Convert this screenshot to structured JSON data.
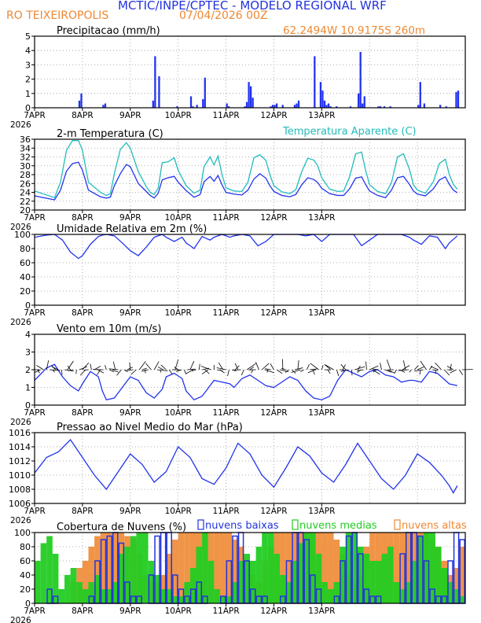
{
  "header": {
    "title": "MCTIC/INPE/CPTEC - MODELO REGIONAL WRF",
    "station": "RO TEIXEIROPOLIS",
    "run": "07/04/2026 00Z",
    "coords": "62.2494W 10.9175S 260m"
  },
  "colors": {
    "title": "#2233dd",
    "station": "#ee8833",
    "bar": "#2233ee",
    "line": "#2233ee",
    "apparent": "#22bbbb",
    "cloud_low": "#2233dd",
    "cloud_mid": "#22cc22",
    "cloud_high": "#ee8833"
  },
  "x_axis": {
    "labels": [
      "7APR",
      "8APR",
      "9APR",
      "10APR",
      "11APR",
      "12APR",
      "13APR"
    ],
    "year": "2026"
  },
  "chart_data": [
    {
      "type": "bar",
      "title": "Precipitacao (mm/h)",
      "ylim": [
        0,
        5
      ],
      "yticks": [
        0,
        1,
        2,
        3,
        4,
        5
      ],
      "x_hours": [
        22,
        23,
        34,
        35,
        59,
        60,
        62,
        71,
        78,
        79,
        81,
        84,
        85,
        96,
        97,
        105,
        106,
        107,
        108,
        109,
        118,
        119,
        120,
        121,
        124,
        130,
        131,
        132,
        140,
        143,
        144,
        145,
        146,
        147,
        148,
        151,
        158,
        162,
        163,
        164,
        165,
        172,
        173,
        175,
        178,
        192,
        193,
        195,
        203,
        206,
        211,
        212
      ],
      "values": [
        0.5,
        1.0,
        0.2,
        0.3,
        0.5,
        3.6,
        2.2,
        0.1,
        0.8,
        0.1,
        0.2,
        0.6,
        2.1,
        0.3,
        0.1,
        0.1,
        0.4,
        1.8,
        1.5,
        0.7,
        0.1,
        0.2,
        0.2,
        0.3,
        0.2,
        0.2,
        0.3,
        0.5,
        3.6,
        1.8,
        1.2,
        0.5,
        0.2,
        0.3,
        0.1,
        0.1,
        0.1,
        1.0,
        3.9,
        0.3,
        0.8,
        0.1,
        0.1,
        0.1,
        0.1,
        0.2,
        1.8,
        0.3,
        0.2,
        0.1,
        1.1,
        1.2
      ]
    },
    {
      "type": "line",
      "title": "2-m Temperatura (C)",
      "ylim": [
        20,
        36
      ],
      "yticks": [
        20,
        22,
        24,
        26,
        28,
        30,
        32,
        34,
        36
      ],
      "series_label": "Temperatura Aparente (C)",
      "series": [
        {
          "name": "temperature",
          "x": [
            0,
            10,
            13,
            16,
            19,
            22,
            24,
            27,
            33,
            36,
            38,
            40,
            43,
            46,
            48,
            52,
            56,
            58,
            60,
            62,
            64,
            67,
            70,
            72,
            76,
            80,
            83,
            85,
            88,
            90,
            92,
            94,
            96,
            100,
            104,
            107,
            110,
            113,
            116,
            118,
            120,
            124,
            128,
            131,
            134,
            137,
            140,
            142,
            144,
            148,
            152,
            155,
            158,
            161,
            164,
            166,
            168,
            172,
            176,
            179,
            182,
            185,
            188,
            190,
            192,
            196,
            200,
            203,
            206,
            208,
            210,
            212
          ],
          "values": [
            23.2,
            22.3,
            24.5,
            28.8,
            30.5,
            30.8,
            29,
            24.5,
            23,
            22.7,
            22.9,
            25.5,
            28.2,
            30.3,
            29.8,
            26,
            24.2,
            23.3,
            22.7,
            23.8,
            26.8,
            27.3,
            27.6,
            26.3,
            24.4,
            22.9,
            23.5,
            26.4,
            27.6,
            26.5,
            27.8,
            25.7,
            24,
            23.6,
            23.4,
            24.5,
            27,
            28.2,
            27.2,
            25.5,
            24.2,
            23.3,
            23,
            23.5,
            25.7,
            27.3,
            26.9,
            26.2,
            24.9,
            23.7,
            23.3,
            23.3,
            24.8,
            27.2,
            27.5,
            25.8,
            24.3,
            23.3,
            22.8,
            24.5,
            27.3,
            27.6,
            25.8,
            24.3,
            23.6,
            23.2,
            24.8,
            26.8,
            27.5,
            25.8,
            24.5,
            23.9
          ]
        },
        {
          "name": "apparent",
          "x": [
            0,
            10,
            13,
            16,
            19,
            22,
            24,
            27,
            33,
            36,
            38,
            40,
            43,
            46,
            48,
            52,
            56,
            58,
            60,
            62,
            64,
            67,
            70,
            72,
            76,
            80,
            83,
            85,
            88,
            90,
            92,
            94,
            96,
            100,
            104,
            107,
            110,
            113,
            116,
            118,
            120,
            124,
            128,
            131,
            134,
            137,
            140,
            142,
            144,
            148,
            152,
            155,
            158,
            161,
            164,
            166,
            168,
            172,
            176,
            179,
            182,
            185,
            188,
            190,
            192,
            196,
            200,
            203,
            206,
            208,
            210,
            212
          ],
          "values": [
            24.3,
            22.8,
            26.3,
            33.5,
            35.7,
            35.7,
            33.5,
            26.3,
            24,
            23.3,
            23.7,
            28.2,
            33.7,
            35.2,
            34,
            28.7,
            25.3,
            24,
            23.5,
            25,
            30.7,
            30.9,
            31.8,
            29,
            25.5,
            23.8,
            24.5,
            29.8,
            32,
            30.2,
            32.2,
            28,
            25,
            24.3,
            24.2,
            26.3,
            31.8,
            32.5,
            31.2,
            28,
            25.5,
            24.1,
            23.7,
            24.6,
            28.7,
            31.7,
            31.3,
            30,
            27.3,
            24.7,
            24.2,
            24.3,
            27.5,
            32.7,
            33.1,
            29,
            25.7,
            24.2,
            23.7,
            26.2,
            32,
            32.7,
            29.2,
            25.7,
            24.5,
            23.8,
            26.4,
            30.5,
            31.5,
            28,
            25.8,
            24.7
          ]
        }
      ]
    },
    {
      "type": "line",
      "title": "Umidade Relativa em 2m (%)",
      "ylim": [
        0,
        100
      ],
      "yticks": [
        0,
        20,
        40,
        60,
        80,
        100
      ],
      "x": [
        0,
        6,
        10,
        14,
        18,
        22,
        24,
        28,
        32,
        34,
        36,
        40,
        44,
        48,
        52,
        56,
        60,
        64,
        66,
        70,
        74,
        76,
        80,
        84,
        88,
        90,
        94,
        98,
        100,
        104,
        108,
        112,
        116,
        120,
        124,
        128,
        132,
        136,
        140,
        144,
        148,
        152,
        156,
        160,
        164,
        168,
        172,
        176,
        180,
        184,
        188,
        190,
        194,
        198,
        202,
        206,
        208,
        212
      ],
      "values": [
        96,
        99,
        100,
        92,
        75,
        66,
        70,
        86,
        97,
        99,
        100,
        98,
        88,
        77,
        70,
        82,
        96,
        100,
        96,
        90,
        96,
        88,
        80,
        97,
        92,
        96,
        100,
        96,
        98,
        100,
        98,
        84,
        90,
        100,
        100,
        100,
        100,
        98,
        100,
        90,
        100,
        100,
        100,
        100,
        84,
        92,
        100,
        100,
        100,
        100,
        96,
        92,
        86,
        98,
        96,
        80,
        88,
        98
      ]
    },
    {
      "type": "line",
      "title": "Vento em 10m (m/s)",
      "ylim": [
        0,
        4
      ],
      "yticks": [
        0,
        1,
        2,
        3,
        4
      ],
      "x": [
        0,
        6,
        10,
        14,
        18,
        22,
        24,
        28,
        32,
        34,
        36,
        40,
        44,
        48,
        52,
        56,
        60,
        64,
        66,
        70,
        74,
        76,
        80,
        84,
        88,
        90,
        94,
        98,
        100,
        104,
        108,
        112,
        116,
        120,
        124,
        128,
        132,
        136,
        140,
        144,
        148,
        152,
        156,
        160,
        164,
        168,
        172,
        176,
        180,
        184,
        188,
        190,
        194,
        198,
        202,
        206,
        208,
        212
      ],
      "values": [
        1.4,
        2.1,
        2.3,
        1.6,
        1.1,
        0.8,
        1.2,
        1.9,
        1.6,
        0.8,
        0.3,
        0.4,
        1.0,
        1.6,
        1.4,
        0.7,
        0.4,
        0.9,
        1.6,
        1.8,
        1.5,
        0.8,
        0.3,
        0.5,
        1.1,
        1.4,
        1.3,
        1.2,
        1.0,
        1.5,
        1.7,
        1.4,
        1.1,
        1.0,
        1.3,
        1.6,
        1.4,
        0.8,
        0.4,
        0.3,
        0.5,
        1.4,
        2.0,
        1.8,
        1.6,
        1.9,
        2.0,
        1.7,
        1.6,
        1.3,
        1.4,
        1.4,
        1.3,
        1.9,
        1.8,
        1.4,
        1.2,
        1.1
      ]
    },
    {
      "type": "line",
      "title": "Pressao ao Nivel Medio do Mar (hPa)",
      "ylim": [
        1006,
        1016
      ],
      "yticks": [
        1006,
        1008,
        1010,
        1012,
        1014,
        1016
      ],
      "x": [
        0,
        6,
        12,
        18,
        24,
        30,
        36,
        42,
        48,
        54,
        60,
        66,
        72,
        78,
        84,
        90,
        96,
        102,
        108,
        114,
        120,
        126,
        132,
        138,
        144,
        150,
        156,
        162,
        168,
        174,
        180,
        186,
        192,
        198,
        204,
        208,
        210,
        212
      ],
      "values": [
        1010.3,
        1012.5,
        1013.3,
        1015,
        1012.5,
        1010,
        1008,
        1010.5,
        1013,
        1011.5,
        1009,
        1010.5,
        1014,
        1012.5,
        1009.5,
        1008.7,
        1011,
        1014.5,
        1013,
        1010,
        1008.3,
        1011,
        1014,
        1012.7,
        1010.3,
        1009,
        1011.5,
        1014.5,
        1012,
        1009.5,
        1008,
        1010,
        1013,
        1011.8,
        1010,
        1008.5,
        1007.5,
        1008.5
      ]
    },
    {
      "type": "bar",
      "title": "Cobertura de Nuvens (%)",
      "ylim": [
        0,
        100
      ],
      "yticks": [
        0,
        20,
        40,
        60,
        80,
        100
      ],
      "legend": [
        "nuvens baixas",
        "nuvens medias",
        "nuvens altas"
      ],
      "step_hours": 3,
      "series": [
        {
          "name": "nuvens altas",
          "values": [
            0,
            0,
            0,
            0,
            0,
            0,
            30,
            50,
            60,
            80,
            95,
            100,
            100,
            100,
            100,
            95,
            90,
            70,
            40,
            30,
            30,
            40,
            70,
            90,
            100,
            100,
            100,
            100,
            100,
            100,
            100,
            100,
            100,
            90,
            80,
            60,
            40,
            30,
            60,
            80,
            100,
            100,
            100,
            100,
            100,
            100,
            100,
            100,
            100,
            100,
            90,
            70,
            40,
            30,
            40,
            80,
            100,
            100,
            100,
            100,
            100,
            100,
            100,
            100,
            100,
            100,
            90,
            80,
            60,
            40,
            50,
            80
          ]
        },
        {
          "name": "nuvens medias",
          "values": [
            60,
            85,
            95,
            70,
            20,
            40,
            50,
            30,
            20,
            30,
            40,
            20,
            20,
            30,
            70,
            80,
            95,
            100,
            100,
            60,
            40,
            20,
            20,
            10,
            10,
            30,
            50,
            80,
            100,
            60,
            20,
            10,
            10,
            30,
            60,
            70,
            60,
            80,
            100,
            100,
            70,
            40,
            30,
            60,
            85,
            100,
            100,
            70,
            30,
            20,
            30,
            80,
            100,
            100,
            80,
            70,
            60,
            60,
            70,
            80,
            30,
            20,
            30,
            60,
            95,
            100,
            100,
            80,
            50,
            30,
            20,
            10
          ]
        },
        {
          "name": "nuvens baixas",
          "values": [
            0,
            0,
            20,
            10,
            0,
            0,
            0,
            0,
            0,
            10,
            60,
            90,
            95,
            100,
            85,
            30,
            10,
            10,
            0,
            40,
            95,
            100,
            100,
            40,
            20,
            10,
            20,
            30,
            10,
            0,
            0,
            10,
            60,
            95,
            100,
            60,
            20,
            10,
            10,
            0,
            0,
            10,
            60,
            100,
            100,
            90,
            40,
            20,
            0,
            0,
            10,
            60,
            95,
            100,
            70,
            20,
            10,
            10,
            0,
            0,
            0,
            70,
            100,
            100,
            95,
            60,
            20,
            10,
            10,
            60,
            100,
            90
          ]
        }
      ]
    }
  ]
}
